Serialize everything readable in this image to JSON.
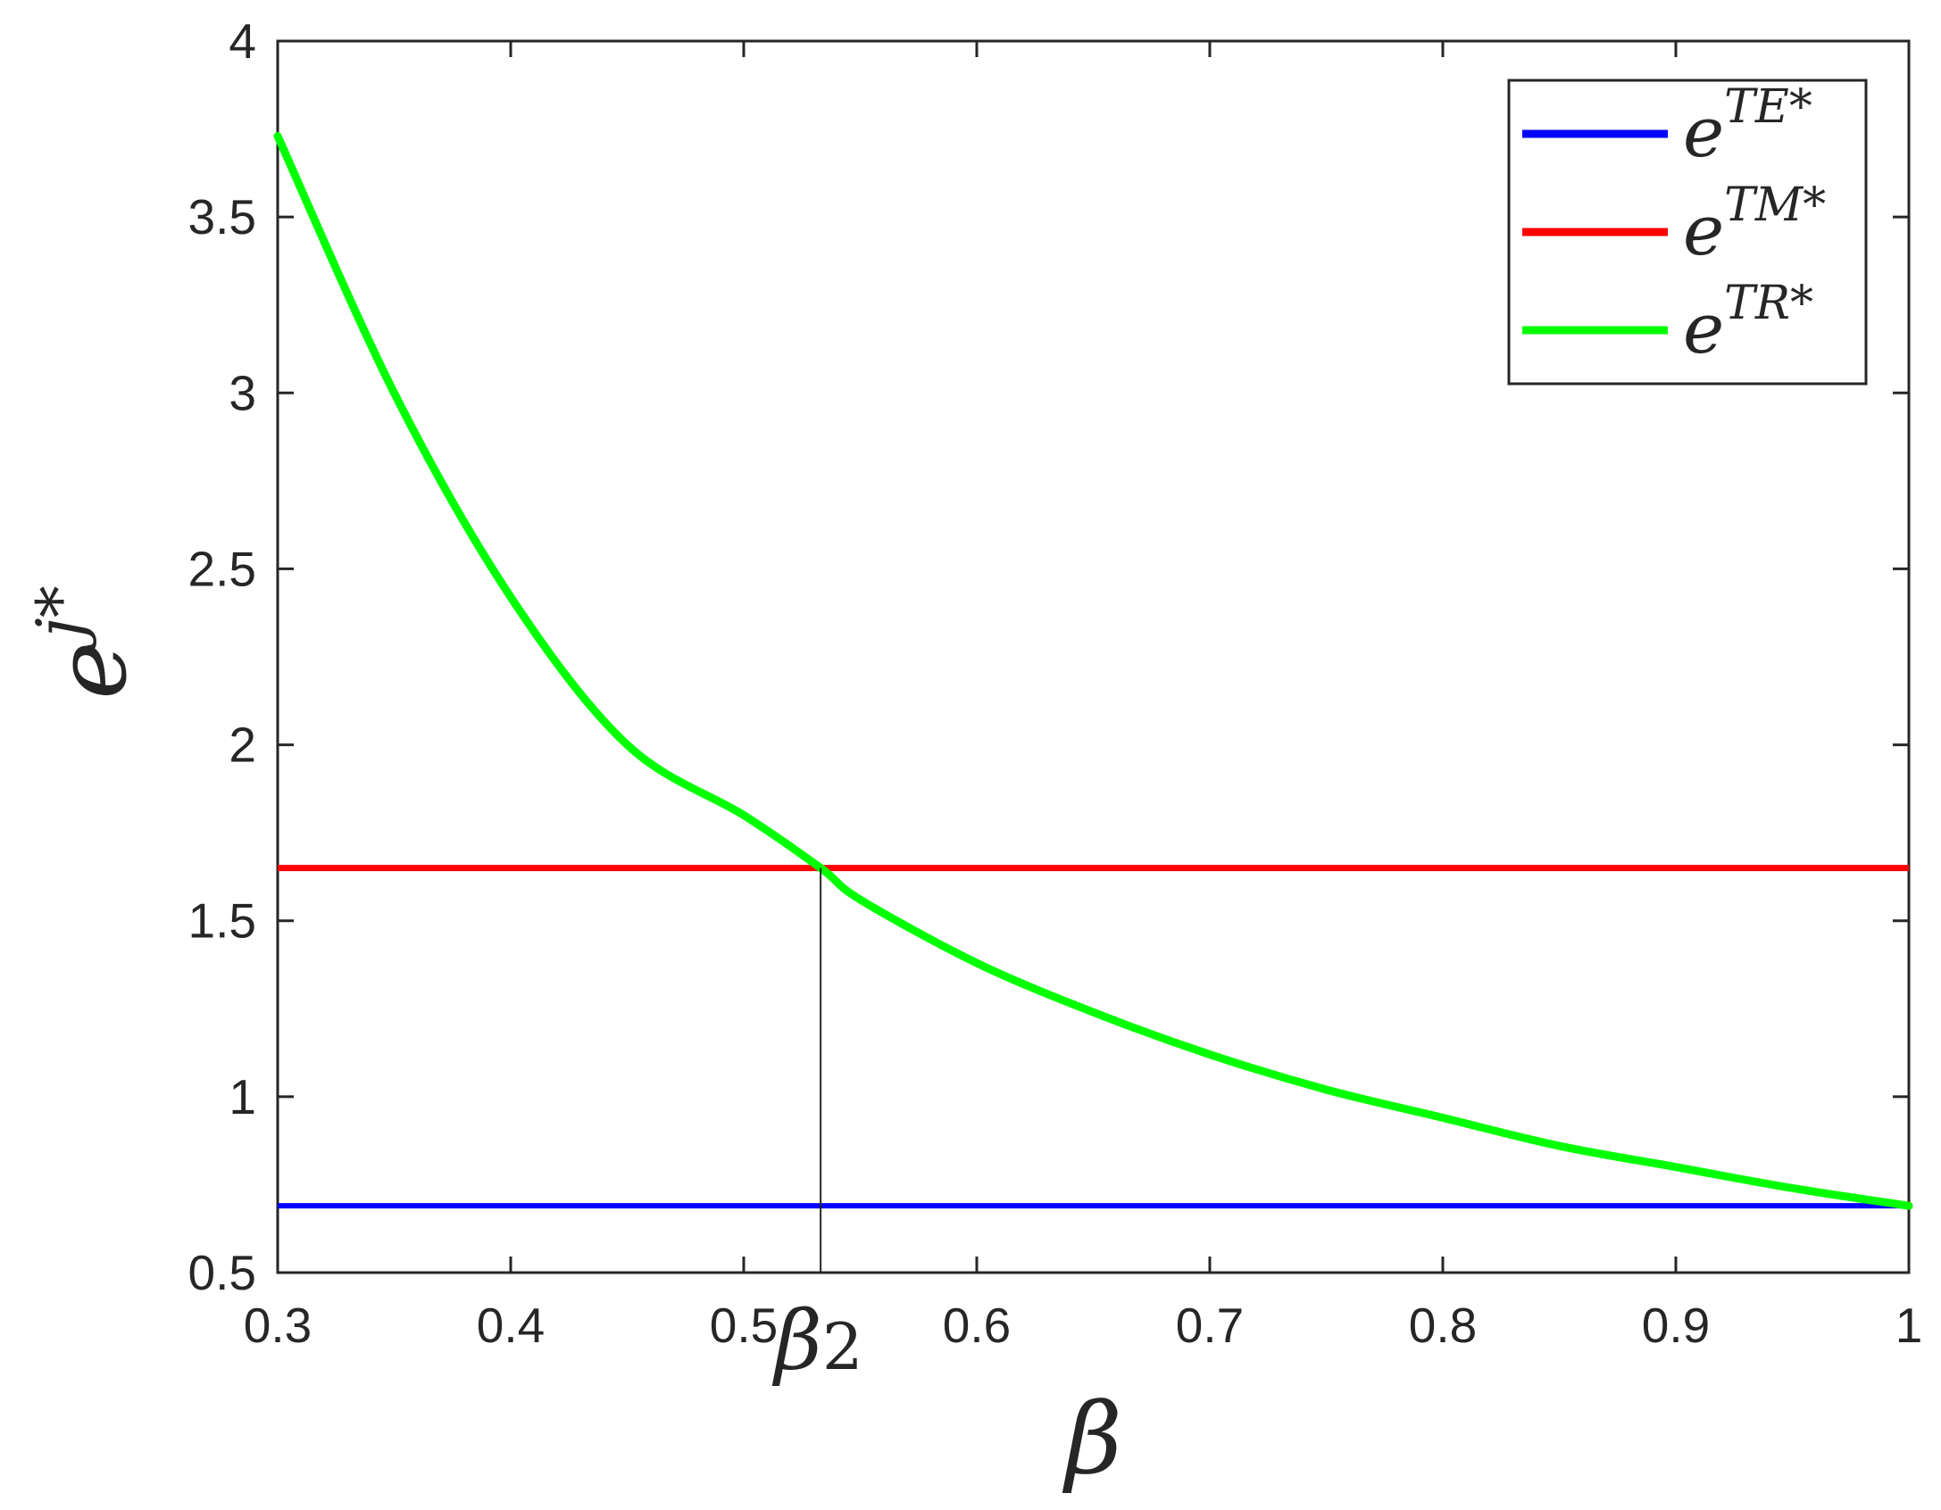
{
  "chart_data": {
    "type": "line",
    "xlabel": "β",
    "ylabel_base": "e",
    "ylabel_sup": "j*",
    "xlim": [
      0.3,
      1
    ],
    "ylim": [
      0.5,
      4
    ],
    "xticks": [
      0.3,
      0.4,
      0.5,
      0.6,
      0.7,
      0.8,
      0.9,
      1
    ],
    "xtick_labels": [
      "0.3",
      "0.4",
      "0.5",
      "0.6",
      "0.7",
      "0.8",
      "0.9",
      "1"
    ],
    "yticks": [
      0.5,
      1,
      1.5,
      2,
      2.5,
      3,
      3.5,
      4
    ],
    "ytick_labels": [
      "0.5",
      "1",
      "1.5",
      "2",
      "2.5",
      "3",
      "3.5",
      "4"
    ],
    "grid": false,
    "legend_position": "top-right",
    "annotation": {
      "x": 0.533,
      "label_base": "β",
      "label_sub": "2"
    },
    "series": [
      {
        "name": "e^{TE*}",
        "legend_base": "e",
        "legend_sup": "TE*",
        "color": "#0000ff",
        "x": [
          0.3,
          1.0
        ],
        "y": [
          0.69,
          0.69
        ]
      },
      {
        "name": "e^{TM*}",
        "legend_base": "e",
        "legend_sup": "TM*",
        "color": "#ff0000",
        "x": [
          0.3,
          1.0
        ],
        "y": [
          1.65,
          1.65
        ]
      },
      {
        "name": "e^{TR*}",
        "legend_base": "e",
        "legend_sup": "TR*",
        "color": "#00ff00",
        "x": [
          0.3,
          0.35,
          0.4,
          0.45,
          0.5,
          0.533,
          0.55,
          0.6,
          0.65,
          0.7,
          0.75,
          0.8,
          0.85,
          0.9,
          0.95,
          1.0
        ],
        "y": [
          3.73,
          3.0,
          2.42,
          2.0,
          1.8,
          1.65,
          1.56,
          1.38,
          1.24,
          1.12,
          1.02,
          0.94,
          0.86,
          0.8,
          0.74,
          0.69
        ]
      }
    ]
  }
}
